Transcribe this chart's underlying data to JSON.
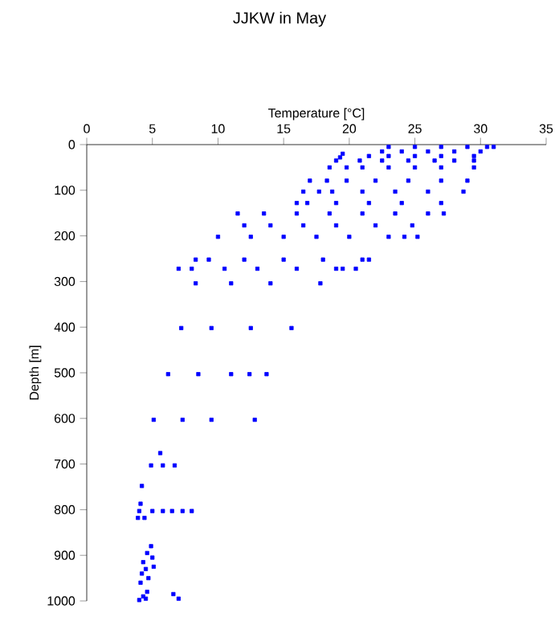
{
  "chart_data": {
    "type": "scatter",
    "title": "JJKW in May",
    "xlabel": "Temperature [°C]",
    "ylabel": "Depth [m]",
    "xlim": [
      0,
      35
    ],
    "xticks": [
      0,
      5,
      10,
      15,
      20,
      25,
      30,
      35
    ],
    "ylim": [
      1000,
      0
    ],
    "yticks": [
      0,
      100,
      200,
      300,
      400,
      500,
      600,
      700,
      800,
      900,
      1000
    ],
    "marker": "square",
    "grid": false,
    "series": [
      {
        "color": "#0000ff",
        "x": [
          23,
          25,
          27,
          29,
          30.5,
          31,
          22.5,
          24,
          26,
          28,
          30,
          21.5,
          23,
          25,
          27,
          29.5,
          20.8,
          22.5,
          24.5,
          26.5,
          28,
          29.5,
          19.5,
          19.3,
          19,
          18.5,
          19.8,
          21,
          23,
          25,
          27,
          29.5,
          17,
          18.3,
          19.8,
          22,
          24.5,
          27,
          29,
          16.5,
          17.7,
          18.7,
          21,
          23.5,
          26,
          28.7,
          16,
          16.8,
          19,
          21.5,
          24,
          27,
          11.5,
          13.5,
          16,
          18.5,
          21,
          23.5,
          26,
          27.2,
          12,
          14,
          16.5,
          19,
          22,
          24.8,
          10,
          12.5,
          15,
          17.5,
          20,
          23,
          24.2,
          25.2,
          8.3,
          9.3,
          12,
          15,
          18,
          21,
          21.5,
          7,
          8,
          10.5,
          13,
          16,
          19,
          19.5,
          20.5,
          8.3,
          11,
          14,
          17.8,
          7.2,
          9.5,
          12.5,
          15.6,
          6.2,
          8.5,
          11,
          12.4,
          13.7,
          5.1,
          7.3,
          9.5,
          12.8,
          5.6,
          4.9,
          5.8,
          6.7,
          4.2,
          4.1,
          4.0,
          5.0,
          5.8,
          6.5,
          7.3,
          8.0,
          3.9,
          4.4,
          4.9,
          4.6,
          5.0,
          4.3,
          5.1,
          4.5,
          4.2,
          4.7,
          4.1,
          4.6,
          4.3,
          4.0,
          4.5,
          6.6,
          7.0
        ],
        "values": [
          5,
          5,
          5,
          5,
          5,
          5,
          15,
          15,
          15,
          15,
          15,
          25,
          25,
          25,
          25,
          25,
          35,
          35,
          35,
          35,
          35,
          35,
          20,
          28,
          35,
          50,
          50,
          50,
          50,
          50,
          50,
          50,
          79,
          79,
          79,
          79,
          79,
          79,
          79,
          103,
          103,
          103,
          103,
          103,
          103,
          103,
          128,
          128,
          128,
          128,
          128,
          128,
          151,
          151,
          151,
          151,
          151,
          151,
          151,
          151,
          177,
          177,
          177,
          177,
          177,
          177,
          202,
          202,
          202,
          202,
          202,
          202,
          202,
          202,
          252,
          252,
          252,
          252,
          252,
          252,
          252,
          272,
          272,
          272,
          272,
          272,
          272,
          272,
          272,
          304,
          304,
          304,
          304,
          402,
          402,
          402,
          402,
          503,
          503,
          503,
          503,
          503,
          603,
          603,
          603,
          603,
          676,
          703,
          703,
          703,
          748,
          787,
          803,
          803,
          803,
          803,
          803,
          803,
          818,
          818,
          880,
          895,
          905,
          915,
          925,
          930,
          940,
          950,
          960,
          980,
          990,
          998,
          995,
          985,
          995
        ]
      }
    ]
  }
}
